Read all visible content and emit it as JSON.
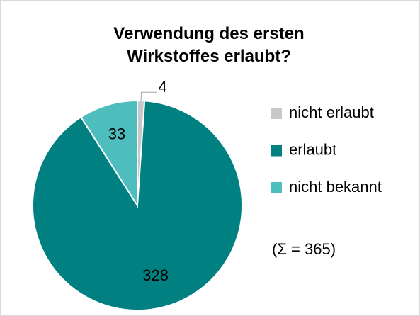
{
  "chart_data": {
    "type": "pie",
    "title": "Verwendung des ersten Wirkstoffes erlaubt?",
    "categories": [
      "nicht erlaubt",
      "erlaubt",
      "nicht bekannt"
    ],
    "values": [
      4,
      328,
      33
    ],
    "colors": [
      "#c8c8c8",
      "#008080",
      "#4dbdbd"
    ],
    "annotation": "(Σ = 365)"
  }
}
